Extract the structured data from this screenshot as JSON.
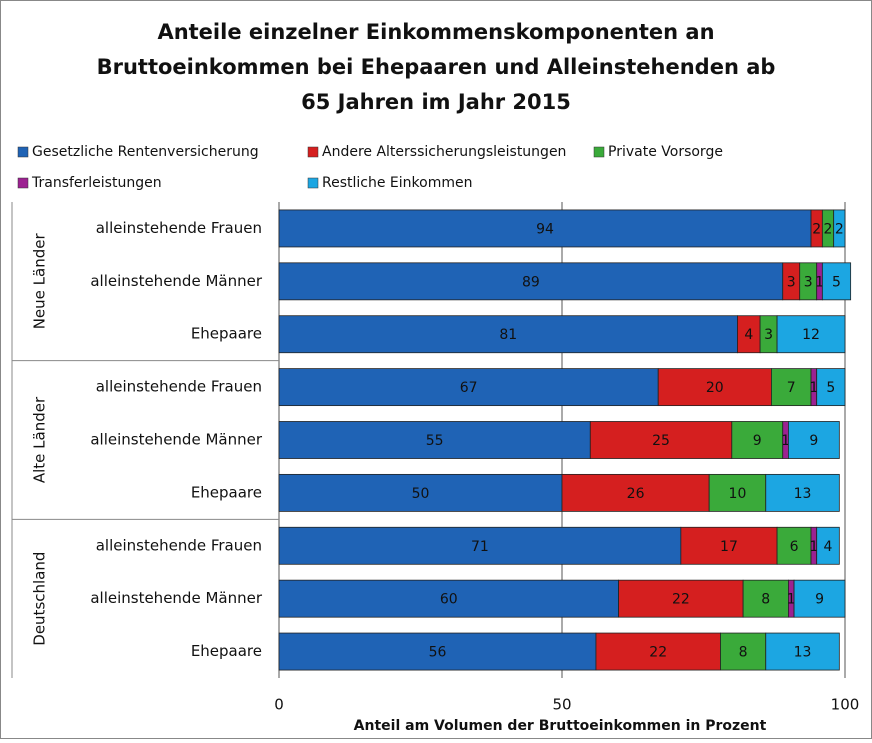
{
  "chart_data": {
    "type": "stacked_barh",
    "title": [
      "Anteile einzelner Einkommenskomponenten an",
      "Bruttoeinkommen bei Ehepaaren und Alleinstehenden ab",
      "65 Jahren im Jahr 2015"
    ],
    "x_label": "Anteil am Volumen der Bruttoeinkommen in Prozent",
    "groups": [
      "Neue Länder",
      "Alte Länder",
      "Deutschland"
    ],
    "categories": [
      "alleinstehende Frauen",
      "alleinstehende Männer",
      "Ehepaare",
      "alleinstehende Frauen",
      "alleinstehende Männer",
      "Ehepaare",
      "alleinstehende Frauen",
      "alleinstehende Männer",
      "Ehepaare"
    ],
    "series": [
      {
        "name": "Gesetzliche Rentenversicherung",
        "color": "#1f63b5",
        "values": [
          94,
          89,
          81,
          67,
          55,
          50,
          71,
          60,
          56
        ]
      },
      {
        "name": "Andere Alterssicherungsleistungen",
        "color": "#d51f1f",
        "values": [
          2,
          3,
          4,
          20,
          25,
          26,
          17,
          22,
          22
        ]
      },
      {
        "name": "Private Vorsorge",
        "color": "#3aaa3a",
        "values": [
          2,
          3,
          3,
          7,
          9,
          10,
          6,
          8,
          8
        ]
      },
      {
        "name": "Transferleistungen",
        "color": "#9c2191",
        "values": [
          0,
          1,
          0,
          1,
          1,
          0,
          1,
          1,
          0
        ]
      },
      {
        "name": "Restliche Einkommen",
        "color": "#1ca6e2",
        "values": [
          2,
          5,
          12,
          5,
          9,
          13,
          4,
          9,
          13
        ]
      }
    ],
    "xlim": [
      0,
      100
    ],
    "xticks": [
      0,
      50,
      100
    ],
    "grid": true
  }
}
